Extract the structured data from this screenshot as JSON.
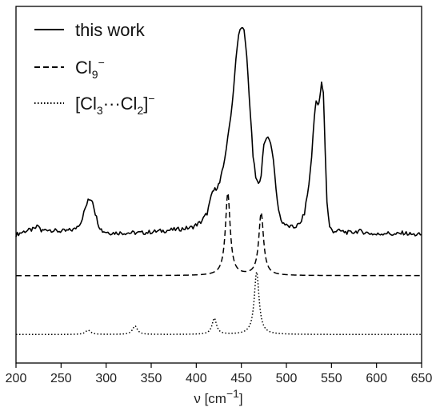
{
  "chart_data": {
    "type": "line",
    "title": "",
    "xlabel": "ν [cm⁻¹]",
    "ylabel": "",
    "xlim": [
      200,
      650
    ],
    "x_ticks": [
      200,
      250,
      300,
      350,
      400,
      450,
      500,
      550,
      600,
      650
    ],
    "y_ticks_shown": false,
    "grid": false,
    "legend_position": "top-left",
    "series": [
      {
        "name": "this work",
        "style": "solid",
        "color": "#000000",
        "baseline_level": 0.365,
        "points": [
          [
            200,
            0.36
          ],
          [
            210,
            0.37
          ],
          [
            220,
            0.375
          ],
          [
            225,
            0.385
          ],
          [
            228,
            0.37
          ],
          [
            235,
            0.375
          ],
          [
            245,
            0.37
          ],
          [
            255,
            0.37
          ],
          [
            265,
            0.375
          ],
          [
            272,
            0.395
          ],
          [
            277,
            0.435
          ],
          [
            280,
            0.455
          ],
          [
            283,
            0.46
          ],
          [
            285,
            0.455
          ],
          [
            288,
            0.42
          ],
          [
            292,
            0.385
          ],
          [
            296,
            0.37
          ],
          [
            305,
            0.365
          ],
          [
            320,
            0.365
          ],
          [
            340,
            0.365
          ],
          [
            360,
            0.37
          ],
          [
            380,
            0.375
          ],
          [
            395,
            0.38
          ],
          [
            405,
            0.395
          ],
          [
            412,
            0.42
          ],
          [
            418,
            0.48
          ],
          [
            422,
            0.49
          ],
          [
            426,
            0.505
          ],
          [
            430,
            0.55
          ],
          [
            435,
            0.63
          ],
          [
            440,
            0.73
          ],
          [
            444,
            0.85
          ],
          [
            447,
            0.92
          ],
          [
            450,
            0.945
          ],
          [
            453,
            0.93
          ],
          [
            456,
            0.86
          ],
          [
            460,
            0.7
          ],
          [
            463,
            0.58
          ],
          [
            466,
            0.52
          ],
          [
            469,
            0.5
          ],
          [
            472,
            0.53
          ],
          [
            475,
            0.61
          ],
          [
            478,
            0.635
          ],
          [
            481,
            0.63
          ],
          [
            484,
            0.6
          ],
          [
            487,
            0.53
          ],
          [
            490,
            0.45
          ],
          [
            494,
            0.4
          ],
          [
            500,
            0.385
          ],
          [
            508,
            0.38
          ],
          [
            515,
            0.39
          ],
          [
            520,
            0.42
          ],
          [
            525,
            0.5
          ],
          [
            528,
            0.58
          ],
          [
            531,
            0.69
          ],
          [
            533,
            0.74
          ],
          [
            535,
            0.72
          ],
          [
            537,
            0.74
          ],
          [
            539,
            0.785
          ],
          [
            541,
            0.76
          ],
          [
            543,
            0.6
          ],
          [
            545,
            0.45
          ],
          [
            548,
            0.38
          ],
          [
            552,
            0.37
          ],
          [
            560,
            0.37
          ],
          [
            570,
            0.365
          ],
          [
            580,
            0.37
          ],
          [
            590,
            0.365
          ],
          [
            600,
            0.36
          ],
          [
            610,
            0.365
          ],
          [
            620,
            0.36
          ],
          [
            630,
            0.365
          ],
          [
            640,
            0.36
          ],
          [
            650,
            0.36
          ]
        ]
      },
      {
        "name": "Cl₉⁻",
        "style": "dashed",
        "color": "#000000",
        "baseline_level": 0.245,
        "peaks": [
          {
            "x": 435,
            "height": 0.23,
            "width": 3.2
          },
          {
            "x": 472,
            "height": 0.175,
            "width": 3.2
          }
        ]
      },
      {
        "name": "[Cl₃···Cl₂]⁻",
        "style": "dotted",
        "color": "#000000",
        "baseline_level": 0.08,
        "peaks": [
          {
            "x": 280,
            "height": 0.012,
            "width": 3.5
          },
          {
            "x": 332,
            "height": 0.024,
            "width": 3.2
          },
          {
            "x": 420,
            "height": 0.045,
            "width": 3.0
          },
          {
            "x": 467,
            "height": 0.175,
            "width": 3.2
          }
        ]
      }
    ]
  },
  "legend": {
    "item1": "this work",
    "item2_main": "Cl",
    "item2_sub": "9",
    "item2_sup": "−",
    "item3_open": "[Cl",
    "item3_sub1": "3",
    "item3_mid": "···Cl",
    "item3_sub2": "2",
    "item3_close": "]",
    "item3_sup": "−"
  },
  "axis": {
    "x_label_main": "ν [cm",
    "x_label_sup": "−1",
    "x_label_close": "]"
  }
}
